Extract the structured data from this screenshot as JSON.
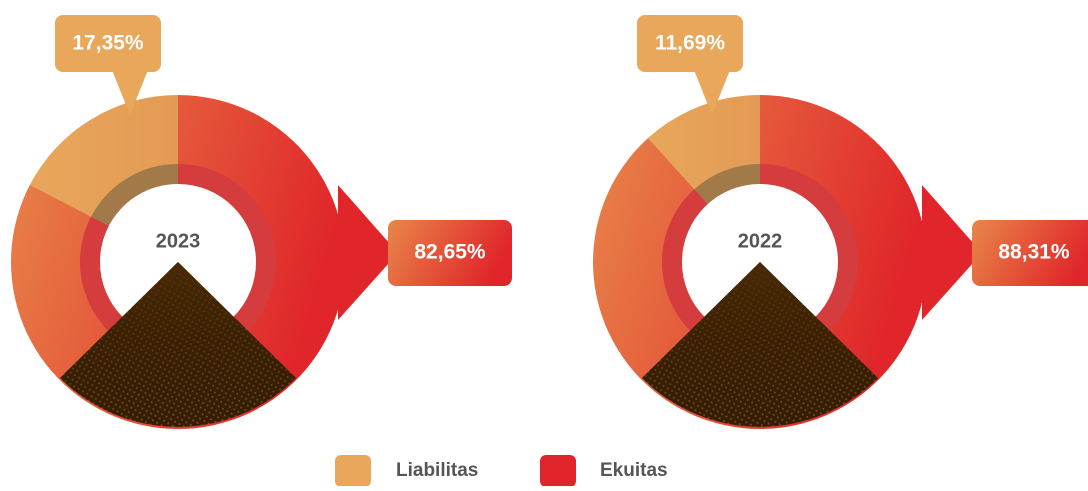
{
  "chart_data": [
    {
      "type": "pie",
      "center_label": "2023",
      "values": [
        17.35,
        82.65
      ],
      "value_labels": [
        "17,35%",
        "82,65%"
      ]
    },
    {
      "type": "pie",
      "center_label": "2022",
      "values": [
        11.69,
        88.31
      ],
      "value_labels": [
        "11,69%",
        "88,31%"
      ]
    }
  ],
  "legend": {
    "labels": [
      "Liabilitas",
      "Ekuitas"
    ],
    "colors": [
      "#e8a75b",
      "#e0262a"
    ]
  }
}
